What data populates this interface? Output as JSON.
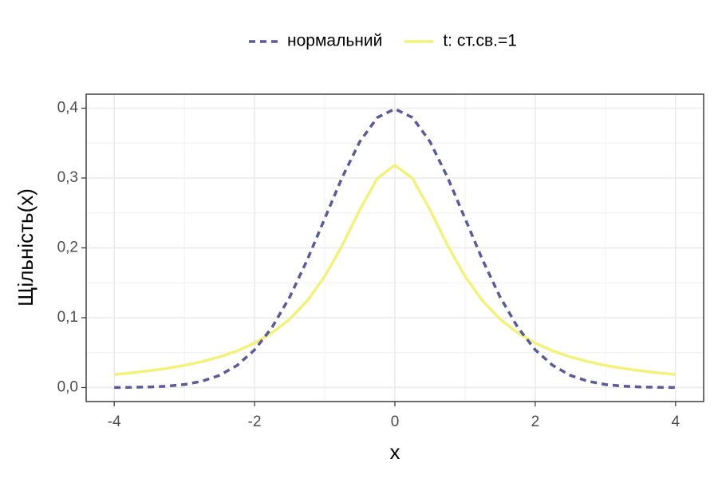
{
  "chart_data": {
    "type": "line",
    "x_label": "x",
    "y_label": "Щільність(x)",
    "x": [
      -4,
      -3.75,
      -3.5,
      -3.25,
      -3,
      -2.75,
      -2.5,
      -2.25,
      -2,
      -1.75,
      -1.5,
      -1.25,
      -1,
      -0.75,
      -0.5,
      -0.25,
      0,
      0.25,
      0.5,
      0.75,
      1,
      1.25,
      1.5,
      1.75,
      2,
      2.25,
      2.5,
      2.75,
      3,
      3.25,
      3.5,
      3.75,
      4
    ],
    "series": [
      {
        "name": "нормальний",
        "color": "#5a5a96",
        "dash": true,
        "values": [
          0.0001,
          0.0004,
          0.0009,
          0.002,
          0.0044,
          0.0091,
          0.0175,
          0.0317,
          0.054,
          0.0863,
          0.1295,
          0.1826,
          0.242,
          0.3011,
          0.3521,
          0.3867,
          0.3989,
          0.3867,
          0.3521,
          0.3011,
          0.242,
          0.1826,
          0.1295,
          0.0863,
          0.054,
          0.0317,
          0.0175,
          0.0091,
          0.0044,
          0.002,
          0.0009,
          0.0004,
          0.0001
        ]
      },
      {
        "name": "t: ст.св.=1",
        "color": "#f2f27a",
        "dash": false,
        "values": [
          0.0187,
          0.0212,
          0.0241,
          0.0275,
          0.0318,
          0.0372,
          0.0439,
          0.0525,
          0.0637,
          0.0784,
          0.0979,
          0.1242,
          0.1592,
          0.2037,
          0.2546,
          0.2996,
          0.3183,
          0.2996,
          0.2546,
          0.2037,
          0.1592,
          0.1242,
          0.0979,
          0.0784,
          0.0637,
          0.0525,
          0.0439,
          0.0372,
          0.0318,
          0.0275,
          0.0241,
          0.0212,
          0.0187
        ]
      }
    ],
    "xlim": [
      -4.4,
      4.4
    ],
    "ylim": [
      -0.02,
      0.42
    ],
    "xticks": [
      -4,
      -2,
      0,
      2,
      4
    ],
    "yticks": [
      {
        "value": 0,
        "label": "0,0"
      },
      {
        "value": 0.1,
        "label": "0,1"
      },
      {
        "value": 0.2,
        "label": "0,2"
      },
      {
        "value": 0.3,
        "label": "0,3"
      },
      {
        "value": 0.4,
        "label": "0,4"
      }
    ],
    "grid": true,
    "minor_grid": true,
    "legend": "top"
  }
}
